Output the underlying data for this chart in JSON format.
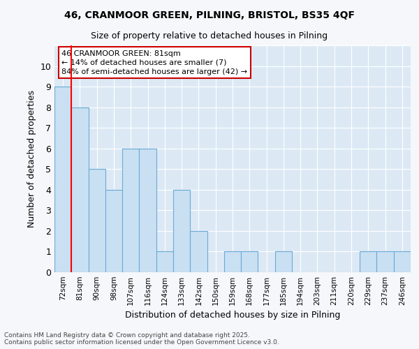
{
  "title1": "46, CRANMOOR GREEN, PILNING, BRISTOL, BS35 4QF",
  "title2": "Size of property relative to detached houses in Pilning",
  "xlabel": "Distribution of detached houses by size in Pilning",
  "ylabel": "Number of detached properties",
  "categories": [
    "72sqm",
    "81sqm",
    "90sqm",
    "98sqm",
    "107sqm",
    "116sqm",
    "124sqm",
    "133sqm",
    "142sqm",
    "150sqm",
    "159sqm",
    "168sqm",
    "177sqm",
    "185sqm",
    "194sqm",
    "203sqm",
    "211sqm",
    "220sqm",
    "229sqm",
    "237sqm",
    "246sqm"
  ],
  "values": [
    9,
    8,
    5,
    4,
    6,
    6,
    1,
    4,
    2,
    0,
    1,
    1,
    0,
    1,
    0,
    0,
    0,
    0,
    1,
    1,
    1
  ],
  "bar_color": "#c9dff2",
  "bar_edge_color": "#6aaad4",
  "red_line_index": 1,
  "ylim": [
    0,
    11
  ],
  "yticks": [
    0,
    1,
    2,
    3,
    4,
    5,
    6,
    7,
    8,
    9,
    10,
    11
  ],
  "annotation_text": "46 CRANMOOR GREEN: 81sqm\n← 14% of detached houses are smaller (7)\n84% of semi-detached houses are larger (42) →",
  "annotation_box_color": "#ffffff",
  "annotation_box_edge": "#cc0000",
  "fig_background": "#f5f7fa",
  "plot_background": "#dce9f5",
  "grid_color": "#ffffff",
  "footer": "Contains HM Land Registry data © Crown copyright and database right 2025.\nContains public sector information licensed under the Open Government Licence v3.0."
}
